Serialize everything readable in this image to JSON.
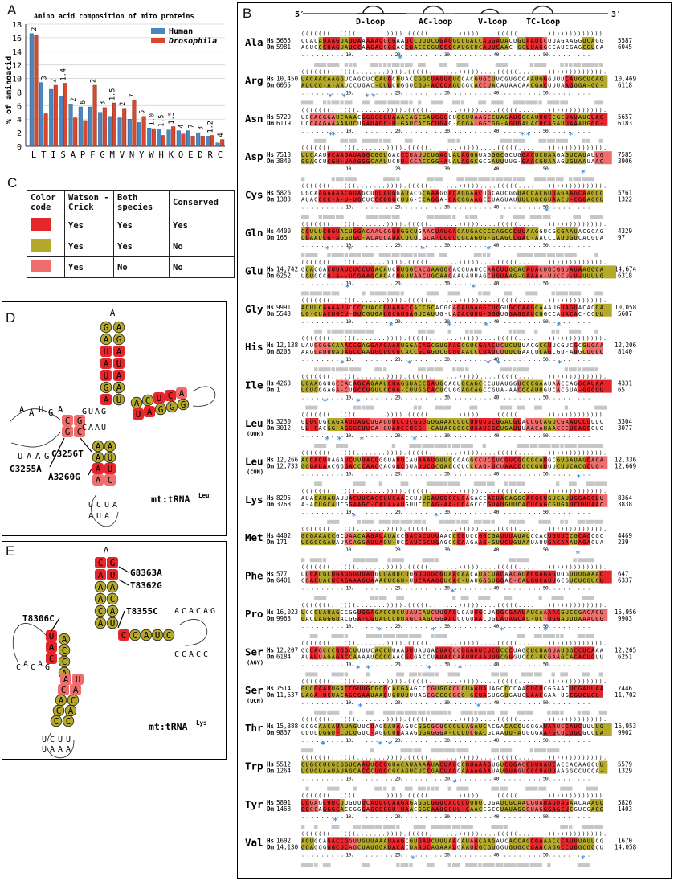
{
  "panel_labels": {
    "a": "A",
    "b": "B",
    "c": "C",
    "d": "D",
    "e": "E"
  },
  "colors": {
    "human": "#4a86c0",
    "drosophila": "#d8482e",
    "conserved": "#e5262b",
    "both_species": "#b5a92c",
    "one_species": "#f06d6d",
    "star": "#3f8fdc",
    "gray_bar": "#c6c6c6"
  },
  "chart_data": {
    "type": "bar",
    "title": "Amino acid composition of mito proteins",
    "ylabel": "% of aminoacid",
    "xlabel": "",
    "ylim": [
      0,
      18
    ],
    "yticks": [
      "0",
      "2",
      "4",
      "6",
      "8",
      "10",
      "12",
      "14",
      "16",
      "18"
    ],
    "categories": [
      "L",
      "T",
      "I",
      "S",
      "A",
      "P",
      "F",
      "G",
      "M",
      "V",
      "N",
      "Y",
      "W",
      "H",
      "K",
      "Q",
      "E",
      "D",
      "R",
      "C"
    ],
    "fold_labels": [
      "2",
      "3",
      "2",
      "1.4",
      "2",
      "6",
      "2",
      "3",
      "1.5",
      "2",
      "7",
      "5",
      "1.0",
      "1.5",
      "1.5",
      "4",
      "7",
      "3",
      "1.2",
      "4"
    ],
    "legend_position": "top-right",
    "series": [
      {
        "name": "Human",
        "values": [
          16.6,
          9.4,
          8.4,
          7.4,
          6.2,
          5.8,
          5.8,
          5.0,
          4.4,
          4.2,
          4.0,
          3.5,
          2.7,
          2.5,
          2.4,
          2.3,
          2.3,
          2.0,
          1.5,
          0.5
        ]
      },
      {
        "name": "Drosophila",
        "values": [
          16.3,
          4.8,
          9.0,
          9.3,
          4.2,
          3.8,
          9.0,
          5.7,
          6.4,
          5.6,
          6.8,
          4.4,
          2.6,
          1.6,
          2.9,
          1.8,
          1.5,
          1.5,
          1.6,
          1.0
        ]
      }
    ]
  },
  "legend_table": {
    "headers": [
      "Color code",
      "Watson -Crick",
      "Both species",
      "Conserved"
    ],
    "rows": [
      {
        "wc": "Yes",
        "both": "Yes",
        "conserved": "Yes"
      },
      {
        "wc": "Yes",
        "both": "Yes",
        "conserved": "No"
      },
      {
        "wc": "Yes",
        "both": "No",
        "conserved": "No"
      }
    ]
  },
  "alignment": {
    "header": {
      "five": "5′",
      "three": "3′",
      "d_loop": "D-loop",
      "ac_loop": "AC-loop",
      "v_loop": "V-loop",
      "tc_loop": "TC-loop"
    },
    "species": {
      "hs": "Hs",
      "dm": "Dm"
    },
    "ruler": ". . . . . . . . . 10. . . . . . . . . 20. . . . . . . . . 30. . . . . . . . . 40. . . . . . . . . 50. . . . . . . . .",
    "structure": "(((((((..((((.......)))).(((((.......)))))....(((((.......))))))))))))).",
    "rows": [
      {
        "aa": "Ala",
        "sub": "",
        "hs_start": "5655",
        "dm_start": "5981",
        "hs_end": "5587",
        "dm_end": "6045"
      },
      {
        "aa": "Arg",
        "sub": "",
        "hs_start": "10,450",
        "dm_start": "6055",
        "hs_end": "10,469",
        "dm_end": "6118"
      },
      {
        "aa": "Asn",
        "sub": "",
        "hs_start": "5729",
        "dm_start": "6119",
        "hs_end": "5657",
        "dm_end": "6183"
      },
      {
        "aa": "Asp",
        "sub": "",
        "hs_start": "7518",
        "dm_start": "3840",
        "hs_end": "7585",
        "dm_end": "3906"
      },
      {
        "aa": "Cys",
        "sub": "",
        "hs_start": "5826",
        "dm_start": "1383",
        "hs_end": "5761",
        "dm_end": "1322"
      },
      {
        "aa": "Gln",
        "sub": "",
        "hs_start": "4400",
        "dm_start": "165",
        "hs_end": "4329",
        "dm_end": "97"
      },
      {
        "aa": "Glu",
        "sub": "",
        "hs_start": "14,742",
        "dm_start": "6252",
        "hs_end": "14,674",
        "dm_end": "6318"
      },
      {
        "aa": "Gly",
        "sub": "",
        "hs_start": "9991",
        "dm_start": "5543",
        "hs_end": "10,058",
        "dm_end": "5607"
      },
      {
        "aa": "His",
        "sub": "",
        "hs_start": "12,138",
        "dm_start": "8205",
        "hs_end": "12,206",
        "dm_end": "8140"
      },
      {
        "aa": "Ile",
        "sub": "",
        "hs_start": "4263",
        "dm_start": "1",
        "hs_end": "4331",
        "dm_end": "65"
      },
      {
        "aa": "Leu",
        "sub": "(UUR)",
        "hs_start": "3230",
        "dm_start": "3012",
        "hs_end": "3304",
        "dm_end": "3077"
      },
      {
        "aa": "Leu",
        "sub": "(CUN)",
        "hs_start": "12,266",
        "dm_start": "12,733",
        "hs_end": "12,336",
        "dm_end": "12,669"
      },
      {
        "aa": "Lys",
        "sub": "",
        "hs_start": "8295",
        "dm_start": "3768",
        "hs_end": "8364",
        "dm_end": "3838"
      },
      {
        "aa": "Met",
        "sub": "",
        "hs_start": "4402",
        "dm_start": "171",
        "hs_end": "4469",
        "dm_end": "239"
      },
      {
        "aa": "Phe",
        "sub": "",
        "hs_start": "577",
        "dm_start": "6401",
        "hs_end": "647",
        "dm_end": "6337"
      },
      {
        "aa": "Pro",
        "sub": "",
        "hs_start": "16,023",
        "dm_start": "9963",
        "hs_end": "15,956",
        "dm_end": "9903"
      },
      {
        "aa": "Ser",
        "sub": "(AGY)",
        "hs_start": "12,207",
        "dm_start": "6184",
        "hs_end": "12,265",
        "dm_end": "6251"
      },
      {
        "aa": "Ser",
        "sub": "(UCN)",
        "hs_start": "7514",
        "dm_start": "11,637",
        "hs_end": "7446",
        "dm_end": "11,702"
      },
      {
        "aa": "Thr",
        "sub": "",
        "hs_start": "15,888",
        "dm_start": "9837",
        "hs_end": "15,953",
        "dm_end": "9902"
      },
      {
        "aa": "Trp",
        "sub": "",
        "hs_start": "5512",
        "dm_start": "1264",
        "hs_end": "5579",
        "dm_end": "1329"
      },
      {
        "aa": "Tyr",
        "sub": "",
        "hs_start": "5891",
        "dm_start": "1468",
        "hs_end": "5826",
        "dm_end": "1403"
      },
      {
        "aa": "Val",
        "sub": "",
        "hs_start": "1602",
        "dm_start": "14,130",
        "hs_end": "1670",
        "dm_end": "14,058"
      }
    ]
  },
  "panel_d": {
    "title": "mt:tRNA",
    "title_sup": "Leu",
    "mutations": [
      "G3255A",
      "C3256T",
      "A3260G"
    ],
    "acceptor": [
      "G",
      "A",
      "U",
      "A",
      "U",
      "G",
      "A"
    ],
    "acceptor_partner": [
      "A",
      "G",
      "A",
      "U",
      "A",
      "A",
      "U"
    ],
    "tc_top": [
      "A",
      "C",
      "U",
      "C",
      "A"
    ],
    "d_arm": [
      "C",
      "G"
    ],
    "d_arm_partner": [
      "G",
      "C"
    ],
    "ac_stem": [
      "A",
      "A",
      "A",
      "A"
    ],
    "ac_stem_partner": [
      "A",
      "U",
      "U",
      "C"
    ],
    "loop_letters": [
      "A",
      "G",
      "U",
      "A",
      "A",
      "G",
      "C",
      "A",
      "U",
      "A",
      "A",
      "U",
      "G",
      "U",
      "A",
      "A",
      "A",
      "G",
      "U"
    ]
  },
  "panel_e": {
    "title": "mt:tRNA",
    "title_sup": "Lys",
    "mutations": [
      "G8363A",
      "T8362G",
      "T8355C",
      "T8306C"
    ],
    "acceptor": [
      "C",
      "A",
      "A",
      "A",
      "C",
      "A"
    ],
    "acceptor_partner": [
      "G",
      "U",
      "A",
      "C",
      "A",
      "U"
    ],
    "tc_arm": [
      "C",
      "C",
      "A",
      "U",
      "C"
    ],
    "d_arm": [
      "U",
      "A",
      "C"
    ],
    "ac_stem": [
      "A",
      "C",
      "A",
      "C",
      "C"
    ],
    "loop_letters": [
      "A",
      "A",
      "G",
      "C",
      "A",
      "C",
      "A",
      "C",
      "A",
      "G",
      "C",
      "C",
      "A",
      "C",
      "U",
      "C",
      "U",
      "U",
      "U",
      "A",
      "A",
      "A"
    ]
  }
}
